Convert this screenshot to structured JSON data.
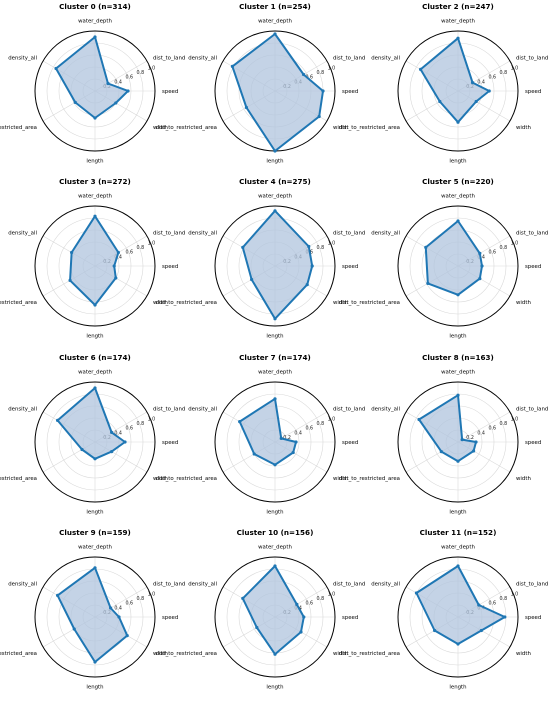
{
  "chart_data": {
    "type": "radar",
    "axes": [
      "speed",
      "dist_to_land",
      "water_depth",
      "density_all",
      "dist_to_restricted_area",
      "length",
      "width"
    ],
    "rticks": [
      "0.2",
      "0.4",
      "0.6",
      "0.8",
      "1.0"
    ],
    "rlim": [
      0,
      1.0
    ],
    "grid": true,
    "panels": [
      {
        "title": "Cluster 0 (n=314)",
        "values": [
          0.55,
          0.25,
          0.9,
          0.75,
          0.38,
          0.45,
          0.4
        ]
      },
      {
        "title": "Cluster 1 (n=254)",
        "values": [
          0.8,
          0.55,
          0.95,
          0.82,
          0.55,
          1.0,
          0.85
        ]
      },
      {
        "title": "Cluster 2 (n=247)",
        "values": [
          0.52,
          0.28,
          0.88,
          0.72,
          0.35,
          0.52,
          0.35
        ]
      },
      {
        "title": "Cluster 3 (n=272)",
        "values": [
          0.32,
          0.45,
          0.83,
          0.45,
          0.48,
          0.65,
          0.4
        ]
      },
      {
        "title": "Cluster 4 (n=275)",
        "values": [
          0.62,
          0.65,
          0.92,
          0.62,
          0.45,
          0.88,
          0.62
        ]
      },
      {
        "title": "Cluster 5 (n=220)",
        "values": [
          0.4,
          0.42,
          0.75,
          0.62,
          0.58,
          0.48,
          0.42
        ]
      },
      {
        "title": "Cluster 6 (n=174)",
        "values": [
          0.5,
          0.32,
          0.9,
          0.72,
          0.25,
          0.28,
          0.32
        ]
      },
      {
        "title": "Cluster 7 (n=174)",
        "values": [
          0.35,
          0.12,
          0.72,
          0.68,
          0.4,
          0.38,
          0.35
        ]
      },
      {
        "title": "Cluster 8 (n=163)",
        "values": [
          0.3,
          0.08,
          0.78,
          0.75,
          0.32,
          0.32,
          0.3
        ]
      },
      {
        "title": "Cluster 9 (n=159)",
        "values": [
          0.4,
          0.3,
          0.82,
          0.72,
          0.4,
          0.75,
          0.62
        ]
      },
      {
        "title": "Cluster 10 (n=156)",
        "values": [
          0.48,
          0.42,
          0.85,
          0.62,
          0.35,
          0.62,
          0.5
        ]
      },
      {
        "title": "Cluster 11 (n=152)",
        "values": [
          0.78,
          0.4,
          0.85,
          0.8,
          0.45,
          0.45,
          0.45
        ]
      }
    ]
  }
}
